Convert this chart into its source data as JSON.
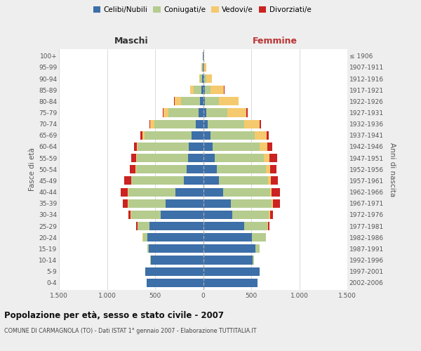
{
  "age_groups": [
    "0-4",
    "5-9",
    "10-14",
    "15-19",
    "20-24",
    "25-29",
    "30-34",
    "35-39",
    "40-44",
    "45-49",
    "50-54",
    "55-59",
    "60-64",
    "65-69",
    "70-74",
    "75-79",
    "80-84",
    "85-89",
    "90-94",
    "95-99",
    "100+"
  ],
  "birth_years": [
    "2002-2006",
    "1997-2001",
    "1992-1996",
    "1987-1991",
    "1982-1986",
    "1977-1981",
    "1972-1976",
    "1967-1971",
    "1962-1966",
    "1957-1961",
    "1952-1956",
    "1947-1951",
    "1942-1946",
    "1937-1941",
    "1932-1936",
    "1927-1931",
    "1922-1926",
    "1917-1921",
    "1912-1916",
    "1907-1911",
    "≤ 1906"
  ],
  "male_celibe": [
    585,
    605,
    545,
    565,
    580,
    560,
    440,
    390,
    290,
    200,
    170,
    160,
    150,
    120,
    80,
    50,
    30,
    20,
    10,
    5,
    5
  ],
  "male_coniugato": [
    0,
    0,
    5,
    15,
    45,
    120,
    310,
    390,
    490,
    545,
    530,
    530,
    530,
    490,
    430,
    310,
    200,
    80,
    20,
    5,
    0
  ],
  "male_vedovo": [
    0,
    0,
    0,
    0,
    5,
    5,
    5,
    5,
    5,
    5,
    5,
    5,
    10,
    20,
    40,
    55,
    65,
    35,
    10,
    5,
    0
  ],
  "male_divorziato": [
    0,
    0,
    0,
    0,
    5,
    10,
    20,
    50,
    75,
    70,
    55,
    55,
    30,
    25,
    10,
    5,
    5,
    0,
    0,
    0,
    0
  ],
  "female_nubile": [
    565,
    585,
    515,
    545,
    505,
    425,
    305,
    285,
    205,
    165,
    145,
    120,
    100,
    80,
    50,
    30,
    20,
    20,
    10,
    5,
    5
  ],
  "female_coniugata": [
    0,
    5,
    15,
    45,
    145,
    245,
    380,
    430,
    490,
    510,
    510,
    510,
    490,
    460,
    380,
    220,
    145,
    60,
    20,
    5,
    0
  ],
  "female_vedova": [
    0,
    0,
    0,
    0,
    0,
    5,
    10,
    10,
    20,
    30,
    40,
    60,
    80,
    120,
    155,
    200,
    200,
    135,
    60,
    20,
    5
  ],
  "female_divorziata": [
    0,
    0,
    0,
    0,
    5,
    15,
    30,
    75,
    85,
    75,
    70,
    80,
    50,
    25,
    15,
    15,
    5,
    5,
    0,
    0,
    0
  ],
  "colors_celibe": "#3d6fa8",
  "colors_coniugato": "#b5cc8e",
  "colors_vedovo": "#f5c96e",
  "colors_divorziato": "#cc2222",
  "xlim": 1500,
  "title": "Popolazione per età, sesso e stato civile - 2007",
  "subtitle": "COMUNE DI CARMAGNOLA (TO) - Dati ISTAT 1° gennaio 2007 - Elaborazione TUTTITALIA.IT",
  "ylabel_left": "Fasce di età",
  "ylabel_right": "Anni di nascita",
  "xlabel_maschi": "Maschi",
  "xlabel_femmine": "Femmine",
  "bg_color": "#eeeeee",
  "plot_bg": "#ffffff"
}
